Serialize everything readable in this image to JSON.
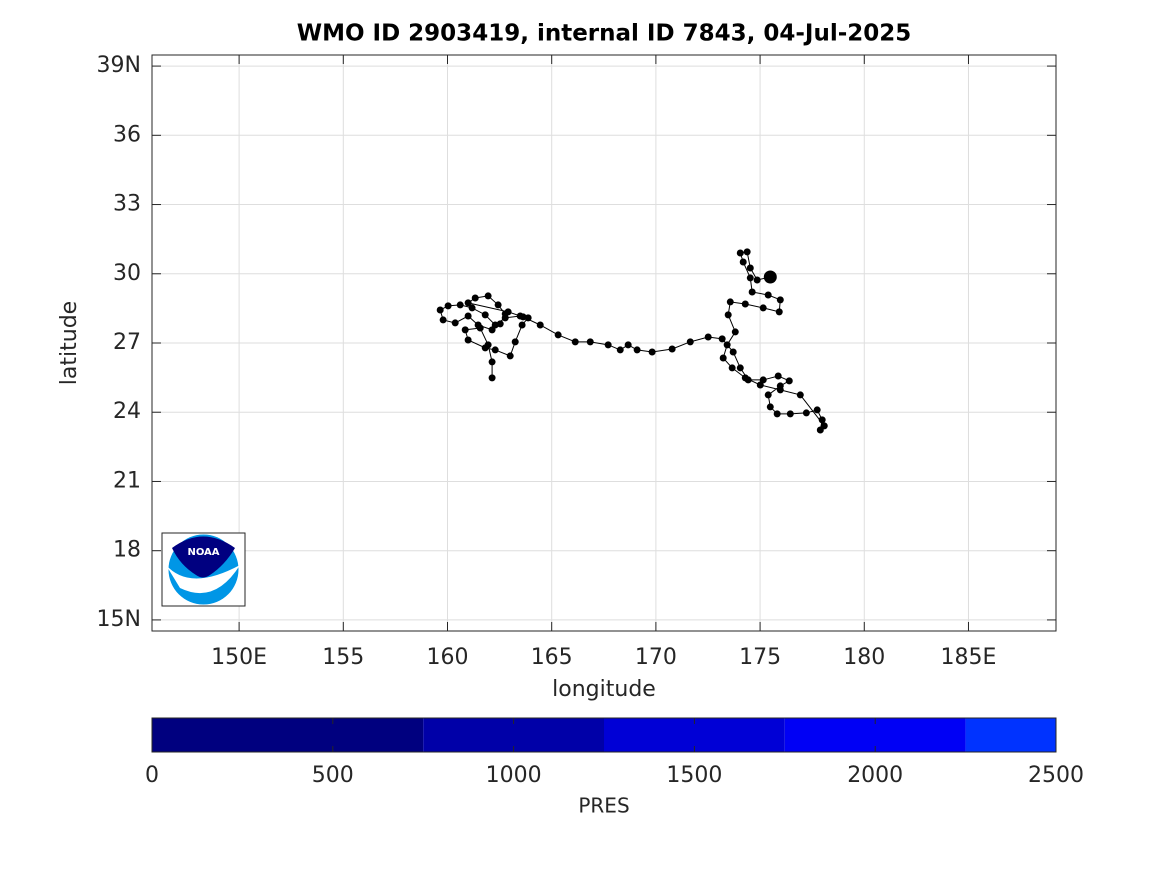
{
  "chart_data": {
    "type": "line",
    "title": "WMO ID 2903419, internal ID 7843, 04-Jul-2025",
    "xlabel": "longitude",
    "ylabel": "latitude",
    "color": "#000000",
    "grid": true,
    "xlim": [
      145.82,
      189.2
    ],
    "ylim": [
      14.52,
      39.48
    ],
    "xticks": [
      {
        "value": 150,
        "label": "150E"
      },
      155,
      160,
      165,
      170,
      175,
      180,
      {
        "value": 185,
        "label": "185E"
      }
    ],
    "yticks": [
      {
        "value": 15,
        "label": "15N"
      },
      18,
      21,
      24,
      27,
      30,
      33,
      36,
      {
        "value": 39,
        "label": "39N"
      }
    ],
    "x": [
      162.14,
      162.14,
      161.95,
      161.57,
      160.85,
      160.99,
      161.81,
      162.29,
      163.01,
      163.25,
      163.58,
      163.87,
      163.49,
      162.77,
      162.29,
      161.81,
      161.18,
      160.61,
      160.03,
      159.65,
      159.79,
      160.37,
      160.99,
      161.47,
      162.14,
      162.53,
      162.77,
      162.43,
      161.95,
      161.33,
      160.99,
      162.91,
      163.63,
      164.45,
      165.31,
      166.13,
      166.85,
      167.71,
      168.29,
      168.67,
      169.1,
      169.82,
      170.78,
      171.65,
      172.51,
      173.18,
      173.71,
      174.05,
      174.43,
      175.15,
      175.87,
      176.4,
      175.97,
      175.39,
      175.49,
      175.82,
      176.45,
      177.22,
      177.74,
      177.98,
      177.89,
      178.08,
      176.93,
      175.97,
      175.01,
      174.29,
      173.66,
      173.23,
      173.42,
      173.81,
      173.47,
      173.57,
      174.29,
      175.15,
      175.92,
      175.97,
      175.39,
      174.62,
      174.53,
      174.19,
      174.05,
      174.38,
      174.53,
      174.86,
      175.49
    ],
    "y": [
      25.49,
      26.18,
      26.92,
      27.65,
      27.57,
      27.13,
      26.79,
      26.7,
      26.44,
      27.05,
      27.78,
      28.09,
      28.17,
      28.09,
      27.78,
      28.22,
      28.52,
      28.65,
      28.61,
      28.43,
      28.0,
      27.87,
      28.17,
      27.78,
      27.57,
      27.83,
      28.26,
      28.65,
      29.04,
      28.95,
      28.74,
      28.35,
      28.13,
      27.78,
      27.35,
      27.05,
      27.05,
      26.92,
      26.7,
      26.92,
      26.7,
      26.61,
      26.74,
      27.05,
      27.26,
      27.18,
      26.61,
      25.92,
      25.4,
      25.4,
      25.57,
      25.36,
      25.14,
      24.75,
      24.23,
      23.93,
      23.93,
      23.97,
      24.1,
      23.67,
      23.23,
      23.41,
      24.75,
      24.97,
      25.18,
      25.49,
      25.92,
      26.35,
      26.92,
      27.48,
      28.22,
      28.78,
      28.69,
      28.52,
      28.35,
      28.87,
      29.08,
      29.21,
      29.82,
      30.51,
      30.9,
      30.95,
      30.25,
      29.73,
      29.86
    ],
    "logo_text": "NOAA",
    "colorbar": {
      "label": "PRES",
      "lim": [
        0,
        2500
      ],
      "ticks": [
        0,
        500,
        1000,
        1500,
        2000,
        2500
      ],
      "bounds": [
        0,
        750,
        1250,
        1750,
        2250,
        2500
      ],
      "colors": [
        "#00007f",
        "#0000a8",
        "#0000d6",
        "#0000f5",
        "#0033ff"
      ]
    }
  }
}
